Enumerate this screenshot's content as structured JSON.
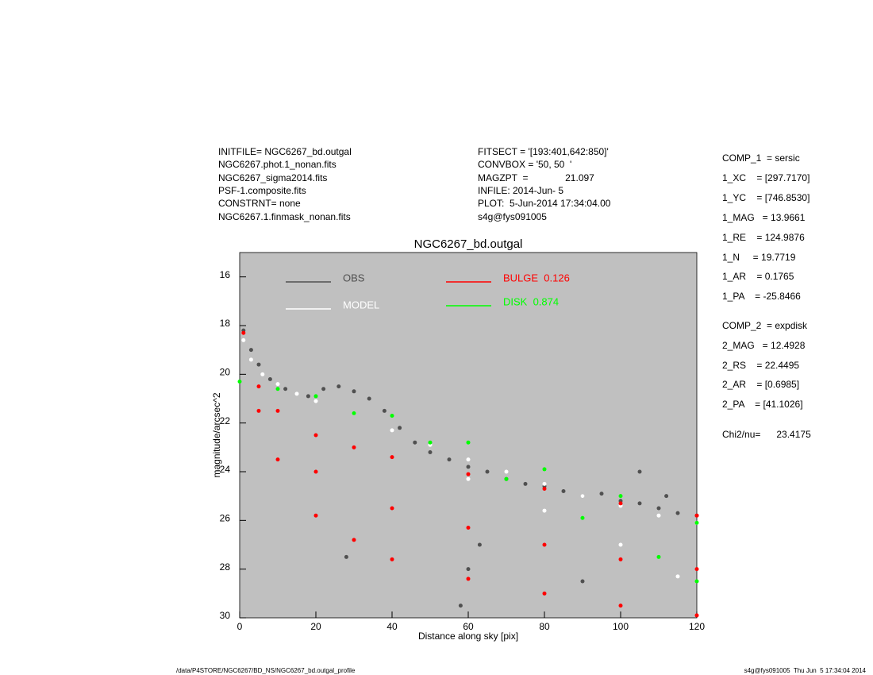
{
  "header": {
    "left": [
      "INITFILE= NGC6267_bd.outgal",
      "NGC6267.phot.1_nonan.fits",
      "NGC6267_sigma2014.fits",
      "PSF-1.composite.fits",
      "CONSTRNT= none",
      "NGC6267.1.finmask_nonan.fits"
    ],
    "middle": [
      "FITSECT = '[193:401,642:850]'",
      "CONVBOX = '50, 50  '",
      "MAGZPT  =              21.097",
      "INFILE: 2014-Jun- 5",
      "PLOT:  5-Jun-2014 17:34:04.00",
      "s4g@fys091005"
    ]
  },
  "params": {
    "comp1": [
      "COMP_1  = sersic",
      "1_XC    = [297.7170]",
      "1_YC    = [746.8530]",
      "1_MAG   = 13.9661",
      "1_RE    = 124.9876",
      "1_N     = 19.7719",
      "1_AR    = 0.1765",
      "1_PA    = -25.8466"
    ],
    "comp2": [
      "COMP_2  = expdisk",
      "2_MAG   = 12.4928",
      "2_RS    = 22.4495",
      "2_AR    = [0.6985]",
      "2_PA    = [41.1026]"
    ],
    "chi": "Chi2/nu=      23.4175"
  },
  "footer": {
    "left": "/data/P4STORE/NGC6267/BD_NS/NGC6267_bd.outgal_profile",
    "right": "s4g@fys091005  Thu Jun  5 17:34:04 2014"
  },
  "chart_data": {
    "type": "scatter",
    "title": "NGC6267_bd.outgal",
    "x_label": "Distance along sky [pix]",
    "y_label": "magnitude/arcsec^2",
    "xlim": [
      0,
      120
    ],
    "xticks": [
      0,
      20,
      40,
      60,
      80,
      100,
      120
    ],
    "ylim": [
      30,
      15
    ],
    "yticks": [
      16,
      18,
      20,
      22,
      24,
      26,
      28,
      30
    ],
    "background": "#c0c0c0",
    "series": [
      {
        "name": "OBS",
        "color": "#505050",
        "x": [
          1,
          3,
          5,
          8,
          12,
          18,
          22,
          26,
          30,
          34,
          38,
          42,
          46,
          50,
          55,
          60,
          65,
          70,
          75,
          80,
          85,
          90,
          95,
          100,
          105,
          110,
          115,
          120,
          28,
          58,
          60,
          63,
          90,
          105,
          112
        ],
        "values": [
          18.2,
          19.0,
          19.6,
          20.2,
          20.6,
          20.9,
          20.6,
          20.5,
          20.7,
          21.0,
          21.5,
          22.2,
          22.8,
          23.2,
          23.5,
          23.8,
          24.0,
          24.3,
          24.5,
          24.6,
          24.8,
          25.0,
          24.9,
          25.2,
          25.3,
          25.5,
          25.7,
          25.8,
          27.5,
          29.5,
          28.0,
          27.0,
          28.5,
          24.0,
          25.0
        ]
      },
      {
        "name": "MODEL",
        "color": "#ffffff",
        "x": [
          1,
          3,
          6,
          10,
          15,
          20,
          30,
          40,
          50,
          60,
          70,
          80,
          90,
          100,
          110,
          120,
          60,
          80,
          100,
          115
        ],
        "values": [
          18.6,
          19.4,
          20.0,
          20.4,
          20.8,
          21.1,
          21.6,
          22.3,
          22.9,
          23.5,
          24.0,
          24.5,
          25.0,
          25.4,
          25.8,
          26.1,
          24.3,
          25.6,
          27.0,
          28.3
        ]
      },
      {
        "name": "BULGE  0.126",
        "color": "#ff0000",
        "x": [
          1,
          5,
          10,
          20,
          30,
          40,
          60,
          80,
          100,
          120,
          5,
          10,
          20,
          30,
          40,
          60,
          80,
          100,
          120,
          20,
          40,
          60,
          80,
          100,
          120
        ],
        "values": [
          18.3,
          21.5,
          23.5,
          25.8,
          26.8,
          27.6,
          28.4,
          29.0,
          29.5,
          29.9,
          20.5,
          21.5,
          22.5,
          23.0,
          23.4,
          24.1,
          24.7,
          25.3,
          25.8,
          24.0,
          25.5,
          26.3,
          27.0,
          27.6,
          28.0
        ]
      },
      {
        "name": "DISK  0.874",
        "color": "#00ff00",
        "x": [
          0,
          20,
          40,
          60,
          80,
          100,
          120,
          10,
          30,
          50,
          70,
          90,
          110,
          120
        ],
        "values": [
          20.3,
          20.9,
          21.7,
          22.8,
          23.9,
          25.0,
          26.1,
          20.6,
          21.6,
          22.8,
          24.3,
          25.9,
          27.5,
          28.5
        ]
      }
    ]
  }
}
